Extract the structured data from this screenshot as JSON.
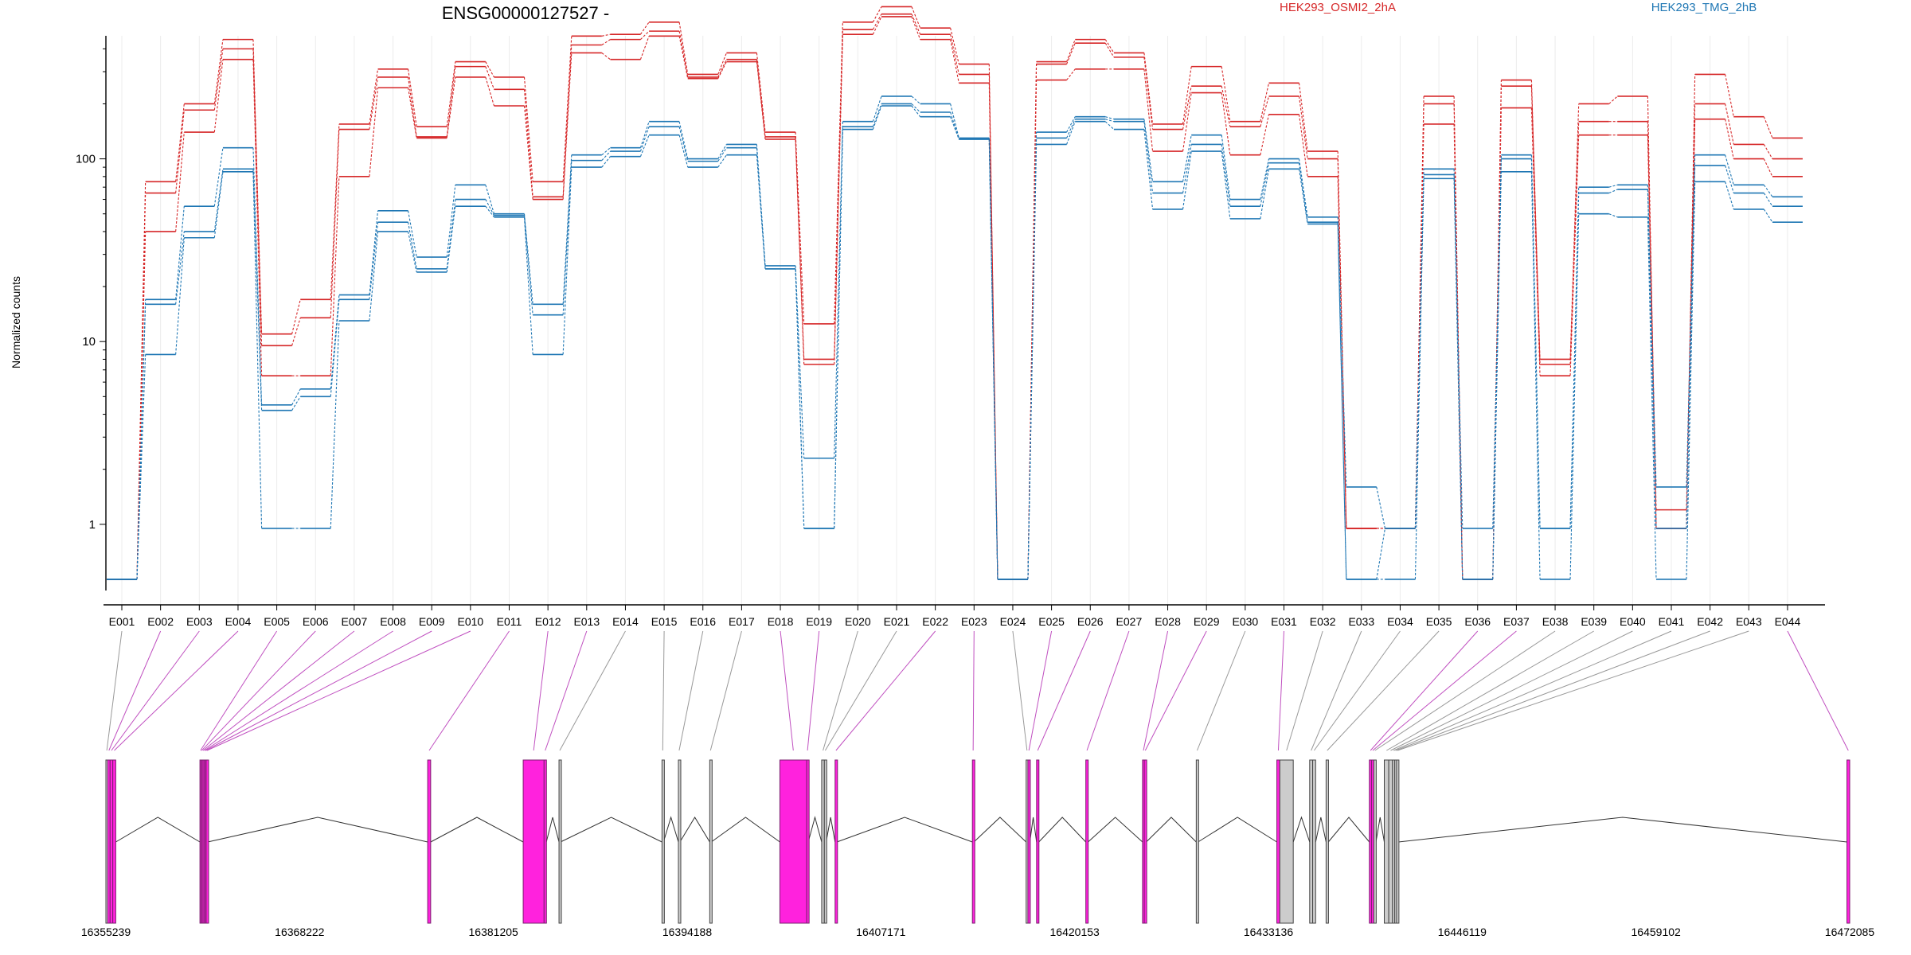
{
  "chart_data": {
    "type": "line",
    "title": "ENSG00000127527 -",
    "ylabel": "Normalized counts",
    "yscale": "log",
    "ytick_labels": [
      "1",
      "10",
      "100"
    ],
    "legend_placement": "top",
    "categories": [
      "E001",
      "E002",
      "E003",
      "E004",
      "E005",
      "E006",
      "E007",
      "E008",
      "E009",
      "E010",
      "E011",
      "E012",
      "E013",
      "E014",
      "E015",
      "E016",
      "E017",
      "E018",
      "E019",
      "E020",
      "E021",
      "E022",
      "E023",
      "E024",
      "E025",
      "E026",
      "E027",
      "E028",
      "E029",
      "E030",
      "E031",
      "E032",
      "E033",
      "E034",
      "E035",
      "E036",
      "E037",
      "E038",
      "E039",
      "E040",
      "E041",
      "E042",
      "E043",
      "E044"
    ],
    "series": [
      {
        "name": "HEK293_OSMI2_2hA",
        "color": "#d62728",
        "replicates": [
          [
            0.5,
            75,
            200,
            450,
            11,
            17,
            155,
            310,
            150,
            340,
            280,
            75,
            470,
            480,
            560,
            290,
            380,
            140,
            12.5,
            560,
            680,
            520,
            330,
            0.5,
            340,
            450,
            380,
            155,
            320,
            160,
            260,
            110,
            0.95,
            0.95,
            220,
            0.5,
            270,
            8,
            200,
            220,
            0.95,
            290,
            170,
            130
          ],
          [
            0.5,
            65,
            185,
            400,
            9.5,
            13.5,
            145,
            280,
            132,
            320,
            240,
            62,
            420,
            450,
            500,
            280,
            350,
            132,
            8,
            510,
            620,
            480,
            290,
            0.5,
            330,
            430,
            360,
            145,
            250,
            150,
            220,
            100,
            0.95,
            0.95,
            200,
            0.5,
            250,
            7.5,
            160,
            160,
            1.2,
            200,
            120,
            100
          ],
          [
            0.5,
            40,
            140,
            350,
            6.5,
            6.5,
            80,
            245,
            130,
            280,
            195,
            60,
            380,
            350,
            470,
            275,
            340,
            128,
            7.5,
            480,
            600,
            450,
            260,
            0.5,
            270,
            310,
            310,
            110,
            230,
            105,
            175,
            80,
            0.95,
            0.95,
            155,
            0.5,
            190,
            6.5,
            135,
            135,
            0.95,
            165,
            100,
            80
          ]
        ]
      },
      {
        "name": "HEK293_TMG_2hB",
        "color": "#1f77b4",
        "replicates": [
          [
            0.5,
            17,
            55,
            115,
            4.5,
            5.5,
            18,
            52,
            29,
            72,
            50,
            16,
            105,
            115,
            160,
            100,
            120,
            26,
            2.3,
            160,
            220,
            200,
            130,
            0.5,
            140,
            170,
            165,
            75,
            135,
            60,
            100,
            48,
            1.6,
            0.95,
            88,
            0.95,
            105,
            0.95,
            70,
            72,
            1.6,
            105,
            72,
            62
          ],
          [
            0.5,
            16,
            40,
            88,
            4.2,
            5,
            17,
            45,
            25,
            60,
            49,
            14,
            98,
            110,
            150,
            97,
            115,
            25,
            0.95,
            150,
            200,
            180,
            128,
            0.5,
            130,
            165,
            160,
            65,
            120,
            55,
            95,
            45,
            0.5,
            0.95,
            82,
            0.5,
            100,
            0.95,
            65,
            68,
            0.95,
            92,
            65,
            55
          ],
          [
            0.5,
            8.5,
            37,
            85,
            0.95,
            0.95,
            13,
            40,
            24,
            55,
            48,
            8.5,
            90,
            103,
            135,
            90,
            105,
            25,
            0.95,
            145,
            195,
            170,
            128,
            0.5,
            120,
            160,
            145,
            53,
            110,
            47,
            88,
            44,
            0.5,
            0.5,
            78,
            0.5,
            85,
            0.5,
            50,
            48,
            0.5,
            75,
            53,
            45
          ]
        ]
      }
    ],
    "x_tick_labels": [
      "16355239",
      "16368222",
      "16381205",
      "16394188",
      "16407171",
      "16420153",
      "16433136",
      "16446119",
      "16459102",
      "16472085"
    ],
    "genome_range": [
      16355239,
      16472085
    ],
    "exons": [
      {
        "id": "E001",
        "start": 16355239,
        "end": 16355360,
        "cls": "grey"
      },
      {
        "id": "E002",
        "start": 16355360,
        "end": 16355520,
        "cls": "mag"
      },
      {
        "id": "E003",
        "start": 16355520,
        "end": 16355700,
        "cls": "mag"
      },
      {
        "id": "E004",
        "start": 16355700,
        "end": 16355900,
        "cls": "mag"
      },
      {
        "id": "E005",
        "start": 16361540,
        "end": 16361620,
        "cls": "mag"
      },
      {
        "id": "E006",
        "start": 16361620,
        "end": 16361700,
        "cls": "mag"
      },
      {
        "id": "E007",
        "start": 16361700,
        "end": 16361800,
        "cls": "mag"
      },
      {
        "id": "E008",
        "start": 16361800,
        "end": 16361880,
        "cls": "mag"
      },
      {
        "id": "E009",
        "start": 16361880,
        "end": 16361960,
        "cls": "mag"
      },
      {
        "id": "E010",
        "start": 16361960,
        "end": 16362060,
        "cls": "mag"
      },
      {
        "id": "E011",
        "start": 16376800,
        "end": 16377000,
        "cls": "mag"
      },
      {
        "id": "E012",
        "start": 16383200,
        "end": 16384600,
        "cls": "mag"
      },
      {
        "id": "E013",
        "start": 16384600,
        "end": 16384750,
        "cls": "mag"
      },
      {
        "id": "E014",
        "start": 16385600,
        "end": 16385700,
        "cls": "grey"
      },
      {
        "id": "E015",
        "start": 16392500,
        "end": 16392600,
        "cls": "grey"
      },
      {
        "id": "E016",
        "start": 16393600,
        "end": 16393700,
        "cls": "grey"
      },
      {
        "id": "E017",
        "start": 16395700,
        "end": 16395800,
        "cls": "grey"
      },
      {
        "id": "E018",
        "start": 16400400,
        "end": 16402200,
        "cls": "mag"
      },
      {
        "id": "E019",
        "start": 16402200,
        "end": 16402300,
        "cls": "mag"
      },
      {
        "id": "E020",
        "start": 16403200,
        "end": 16403380,
        "cls": "grey"
      },
      {
        "id": "E021",
        "start": 16403380,
        "end": 16403500,
        "cls": "grey"
      },
      {
        "id": "E022",
        "start": 16404100,
        "end": 16404220,
        "cls": "mag"
      },
      {
        "id": "E023",
        "start": 16413300,
        "end": 16413400,
        "cls": "mag"
      },
      {
        "id": "E024",
        "start": 16416900,
        "end": 16417020,
        "cls": "grey"
      },
      {
        "id": "E025",
        "start": 16417020,
        "end": 16417150,
        "cls": "mag"
      },
      {
        "id": "E026",
        "start": 16417600,
        "end": 16417750,
        "cls": "mag"
      },
      {
        "id": "E027",
        "start": 16420900,
        "end": 16421050,
        "cls": "mag"
      },
      {
        "id": "E028",
        "start": 16424700,
        "end": 16424820,
        "cls": "mag"
      },
      {
        "id": "E029",
        "start": 16424820,
        "end": 16424950,
        "cls": "mag"
      },
      {
        "id": "E030",
        "start": 16428300,
        "end": 16428420,
        "cls": "grey"
      },
      {
        "id": "E031",
        "start": 16433700,
        "end": 16433900,
        "cls": "mag"
      },
      {
        "id": "E032",
        "start": 16433900,
        "end": 16434800,
        "cls": "grey"
      },
      {
        "id": "E033",
        "start": 16435900,
        "end": 16436100,
        "cls": "grey"
      },
      {
        "id": "E034",
        "start": 16436100,
        "end": 16436300,
        "cls": "grey"
      },
      {
        "id": "E035",
        "start": 16437000,
        "end": 16437150,
        "cls": "grey"
      },
      {
        "id": "E036",
        "start": 16439900,
        "end": 16440050,
        "cls": "mag"
      },
      {
        "id": "E037",
        "start": 16440050,
        "end": 16440200,
        "cls": "mag"
      },
      {
        "id": "E038",
        "start": 16440200,
        "end": 16440340,
        "cls": "grey"
      },
      {
        "id": "E039",
        "start": 16440900,
        "end": 16441200,
        "cls": "grey"
      },
      {
        "id": "E040",
        "start": 16441200,
        "end": 16441450,
        "cls": "grey"
      },
      {
        "id": "E041",
        "start": 16441450,
        "end": 16441600,
        "cls": "grey"
      },
      {
        "id": "E042",
        "start": 16441600,
        "end": 16441720,
        "cls": "grey"
      },
      {
        "id": "E043",
        "start": 16441720,
        "end": 16441850,
        "cls": "grey"
      },
      {
        "id": "E044",
        "start": 16471900,
        "end": 16472085,
        "cls": "mag"
      }
    ],
    "colors": {
      "OSMI2": "#d62728",
      "TMG": "#1f77b4",
      "exon_magenta": "#ff22dd",
      "exon_grey": "#cccccc",
      "exon_edge": "#7a1f6e",
      "link_grey": "#999999",
      "link_magenta": "#c050c0"
    }
  }
}
